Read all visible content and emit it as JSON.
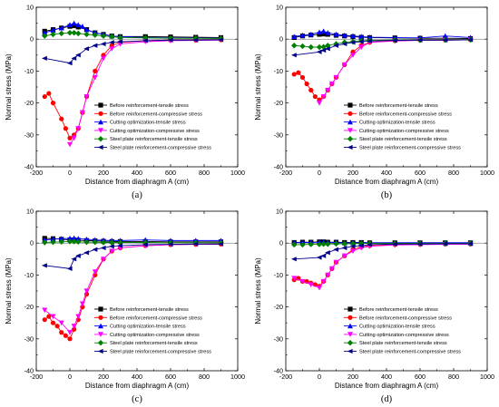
{
  "colors": {
    "tensile_before": "#000000",
    "compressive_before": "#ff0000",
    "tensile_cutting": "#0000ff",
    "compressive_cutting": "#ff00ff",
    "tensile_steel": "#008000",
    "compressive_steel": "#00008b"
  },
  "chart_data": [
    {
      "type": "line",
      "panel_label": "(a)",
      "xlabel": "Distance from diaphragm A (cm)",
      "ylabel": "Normal stress (MPa)",
      "xlim": [
        -200,
        1000
      ],
      "ylim": [
        -40,
        10
      ],
      "xticks": [
        "-200",
        "0",
        "200",
        "400",
        "600",
        "800",
        "1000"
      ],
      "yticks": [
        "10",
        "0",
        "-10",
        "-20",
        "-30",
        "-40"
      ],
      "legend_position": "center-right",
      "series": [
        {
          "name": "Before reinforcement-tensile stress",
          "marker": "square",
          "color": "#000000",
          "x": [
            -150,
            -100,
            -50,
            0,
            25,
            50,
            100,
            150,
            200,
            250,
            300,
            450,
            600,
            750,
            900
          ],
          "y": [
            2.5,
            3.0,
            3.5,
            4.0,
            4.2,
            3.8,
            3.0,
            2.0,
            1.5,
            1.0,
            0.8,
            0.8,
            0.7,
            0.6,
            0.5
          ]
        },
        {
          "name": "Before reinforcement-compressive stress",
          "marker": "circle",
          "color": "#ff0000",
          "x": [
            -150,
            -125,
            -100,
            -50,
            -25,
            0,
            25,
            50,
            75,
            100,
            150,
            200,
            250,
            300,
            450,
            600,
            750,
            900
          ],
          "y": [
            -18,
            -17,
            -20,
            -25,
            -28,
            -31,
            -30,
            -28,
            -23,
            -18,
            -10,
            -5,
            -2,
            -1,
            -0.5,
            -0.3,
            -0.3,
            -0.2
          ]
        },
        {
          "name": "Cutting optimization-tensile stress",
          "marker": "triangle-up",
          "color": "#0000ff",
          "x": [
            -150,
            -100,
            -50,
            0,
            25,
            50,
            75,
            100,
            150,
            200,
            250,
            300,
            450,
            600,
            750,
            900
          ],
          "y": [
            2.0,
            2.8,
            3.5,
            4.5,
            5.0,
            4.5,
            4.0,
            3.0,
            2.0,
            1.5,
            1.0,
            0.8,
            0.5,
            0.4,
            0.4,
            0.3
          ]
        },
        {
          "name": "Cutting optimization-compressive stress",
          "marker": "triangle-down",
          "color": "#ff00ff",
          "x": [
            0,
            25,
            50,
            75,
            100,
            150,
            200,
            250,
            300,
            450,
            600,
            750,
            900
          ],
          "y": [
            -33,
            -31,
            -28,
            -23,
            -18,
            -12,
            -6,
            -3,
            -1.5,
            -0.8,
            -0.5,
            -0.4,
            -0.3
          ]
        },
        {
          "name": "Steel plate reinforcement-tensile stress",
          "marker": "diamond",
          "color": "#008000",
          "x": [
            -150,
            -100,
            -50,
            0,
            25,
            50,
            100,
            150,
            200,
            250,
            300,
            450,
            600,
            750,
            900
          ],
          "y": [
            1.0,
            1.5,
            1.8,
            2.0,
            2.0,
            1.8,
            1.5,
            1.3,
            1.0,
            0.8,
            0.5,
            0.4,
            0.3,
            0.3,
            0.2
          ]
        },
        {
          "name": "Steel plate reinforcement-compressive stress",
          "marker": "triangle-left",
          "color": "#00008b",
          "x": [
            -150,
            0,
            25,
            50,
            100,
            150,
            200,
            250,
            300,
            450,
            600,
            750,
            900
          ],
          "y": [
            -6,
            -7.5,
            -6,
            -5,
            -3,
            -2,
            -1.5,
            -1,
            -0.8,
            -0.5,
            -0.3,
            -0.3,
            -0.2
          ]
        }
      ]
    },
    {
      "type": "line",
      "panel_label": "(b)",
      "xlabel": "Distance from diaphragm A (cm)",
      "ylabel": "Normal stress (MPa)",
      "xlim": [
        -200,
        1000
      ],
      "ylim": [
        -40,
        10
      ],
      "xticks": [
        "-200",
        "0",
        "200",
        "400",
        "600",
        "800",
        "1000"
      ],
      "yticks": [
        "10",
        "0",
        "-10",
        "-20",
        "-30",
        "-40"
      ],
      "legend_position": "center-right",
      "series": [
        {
          "name": "Before reinforcement-tensile stress",
          "marker": "square",
          "color": "#000000",
          "x": [
            -150,
            -100,
            -50,
            0,
            25,
            50,
            100,
            150,
            200,
            250,
            300,
            450,
            600,
            750,
            900
          ],
          "y": [
            0.5,
            1.0,
            1.3,
            1.5,
            1.6,
            1.5,
            1.2,
            1.0,
            0.8,
            0.6,
            0.5,
            0.4,
            0.3,
            0.3,
            0.2
          ]
        },
        {
          "name": "Before reinforcement-compressive stress",
          "marker": "circle",
          "color": "#ff0000",
          "x": [
            -150,
            -125,
            -100,
            -75,
            -50,
            -25,
            0,
            25,
            50,
            75,
            100,
            150,
            200,
            250,
            300,
            450,
            600,
            750,
            900
          ],
          "y": [
            -11,
            -10.5,
            -12,
            -14,
            -16,
            -18,
            -19,
            -18,
            -16,
            -14,
            -12,
            -8,
            -4,
            -2,
            -1,
            -0.5,
            -0.3,
            -0.3,
            -0.2
          ]
        },
        {
          "name": "Cutting optimization-tensile stress",
          "marker": "triangle-up",
          "color": "#0000ff",
          "x": [
            -150,
            -100,
            -50,
            0,
            25,
            50,
            100,
            150,
            200,
            250,
            300,
            450,
            600,
            750,
            900
          ],
          "y": [
            0.8,
            1.2,
            1.5,
            2.2,
            2.5,
            2.0,
            1.5,
            1.2,
            1.0,
            0.8,
            0.6,
            0.5,
            0.4,
            1.0,
            0.5
          ]
        },
        {
          "name": "Cutting optimization-compressive stress",
          "marker": "triangle-down",
          "color": "#ff00ff",
          "x": [
            0,
            25,
            50,
            75,
            100,
            150,
            200,
            250,
            300,
            450,
            600,
            750,
            900
          ],
          "y": [
            -20,
            -18,
            -16,
            -14,
            -12,
            -8,
            -5,
            -2.5,
            -1,
            -0.6,
            -0.4,
            -0.3,
            -0.2
          ]
        },
        {
          "name": "Steel plate reinforcement-tensile stress",
          "marker": "diamond",
          "color": "#008000",
          "x": [
            -150,
            -100,
            -50,
            0,
            25,
            50,
            100,
            150,
            200,
            250,
            300,
            450,
            600,
            750,
            900
          ],
          "y": [
            -2.0,
            -2.2,
            -2.5,
            -2.5,
            -2.4,
            -2.0,
            -1.5,
            -1.0,
            -0.8,
            -0.5,
            -0.4,
            -0.3,
            -0.3,
            -0.2,
            -0.2
          ]
        },
        {
          "name": "Steel plate reinforcement-compressive stress",
          "marker": "triangle-left",
          "color": "#00008b",
          "x": [
            -150,
            0,
            25,
            50,
            100,
            150,
            200,
            250,
            300,
            450,
            600,
            750,
            900
          ],
          "y": [
            -5,
            -4,
            -3.5,
            -3,
            -2,
            -1.5,
            -1,
            -0.8,
            -0.6,
            -0.4,
            -0.3,
            -0.3,
            -0.2
          ]
        }
      ]
    },
    {
      "type": "line",
      "panel_label": "(c)",
      "xlabel": "Distance from diaphragm A (cm)",
      "ylabel": "Normal stress (MPa)",
      "xlim": [
        -200,
        1000
      ],
      "ylim": [
        -40,
        10
      ],
      "xticks": [
        "-200",
        "0",
        "200",
        "400",
        "600",
        "800",
        "1000"
      ],
      "yticks": [
        "10",
        "0",
        "-10",
        "-20",
        "-30",
        "-40"
      ],
      "legend_position": "center-right",
      "series": [
        {
          "name": "Before reinforcement-tensile stress",
          "marker": "square",
          "color": "#000000",
          "x": [
            -150,
            -100,
            -50,
            0,
            25,
            50,
            100,
            150,
            200,
            250,
            300,
            450,
            600,
            750,
            900
          ],
          "y": [
            1.5,
            1.4,
            1.2,
            1.0,
            1.0,
            0.9,
            0.8,
            0.7,
            0.6,
            0.5,
            0.5,
            0.5,
            0.4,
            0.4,
            0.4
          ]
        },
        {
          "name": "Before reinforcement-compressive stress",
          "marker": "circle",
          "color": "#ff0000",
          "x": [
            -150,
            -125,
            -100,
            -75,
            -50,
            -25,
            0,
            25,
            50,
            75,
            100,
            150,
            200,
            250,
            300,
            450,
            600,
            750,
            900
          ],
          "y": [
            -24,
            -23,
            -25,
            -26,
            -28,
            -29,
            -30,
            -27,
            -24,
            -20,
            -16,
            -10,
            -5,
            -2.5,
            -1.5,
            -0.8,
            -0.5,
            -0.4,
            -0.3
          ]
        },
        {
          "name": "Cutting optimization-tensile stress",
          "marker": "triangle-up",
          "color": "#0000ff",
          "x": [
            -150,
            -100,
            -50,
            0,
            25,
            50,
            100,
            150,
            200,
            250,
            300,
            450,
            600,
            750,
            900
          ],
          "y": [
            1.0,
            1.2,
            1.4,
            1.5,
            1.6,
            1.4,
            1.2,
            1.0,
            0.9,
            0.8,
            0.8,
            1.0,
            0.8,
            0.8,
            0.8
          ]
        },
        {
          "name": "Cutting optimization-compressive stress",
          "marker": "triangle-down",
          "color": "#ff00ff",
          "x": [
            -150,
            -100,
            -50,
            0,
            25,
            50,
            75,
            100,
            150,
            200,
            250,
            300,
            450,
            600,
            750,
            900
          ],
          "y": [
            -21,
            -23,
            -25,
            -28,
            -26,
            -23,
            -19,
            -15,
            -9,
            -5,
            -2.5,
            -1.5,
            -0.8,
            -0.5,
            -0.4,
            -0.3
          ]
        },
        {
          "name": "Steel plate reinforcement-tensile stress",
          "marker": "diamond",
          "color": "#008000",
          "x": [
            -150,
            -100,
            -50,
            0,
            25,
            50,
            100,
            150,
            200,
            250,
            300,
            450,
            600,
            750,
            900
          ],
          "y": [
            0.2,
            0.3,
            0.4,
            0.5,
            0.5,
            0.4,
            0.3,
            0.3,
            0.2,
            0.2,
            0.2,
            0.2,
            0.1,
            0.1,
            0.1
          ]
        },
        {
          "name": "Steel plate reinforcement-compressive stress",
          "marker": "triangle-left",
          "color": "#00008b",
          "x": [
            -150,
            0,
            25,
            50,
            100,
            150,
            200,
            250,
            300,
            450,
            600,
            750,
            900
          ],
          "y": [
            -7,
            -8,
            -5,
            -4,
            -3,
            -2,
            -1.5,
            -1,
            -0.8,
            -0.5,
            -0.4,
            -0.3,
            -0.3
          ]
        }
      ]
    },
    {
      "type": "line",
      "panel_label": "(d)",
      "xlabel": "Distance from diaphragm A (cm)",
      "ylabel": "Normal stress (MPa)",
      "xlim": [
        -200,
        1000
      ],
      "ylim": [
        -40,
        10
      ],
      "xticks": [
        "-200",
        "0",
        "200",
        "400",
        "600",
        "800",
        "1000"
      ],
      "yticks": [
        "10",
        "0",
        "-10",
        "-20",
        "-30",
        "-40"
      ],
      "legend_position": "center-right",
      "series": [
        {
          "name": "Before reinforcement-tensile stress",
          "marker": "square",
          "color": "#000000",
          "x": [
            -150,
            -100,
            -50,
            0,
            25,
            50,
            100,
            150,
            200,
            250,
            300,
            450,
            600,
            750,
            900
          ],
          "y": [
            0.2,
            0.3,
            0.3,
            0.4,
            0.4,
            0.3,
            0.3,
            0.2,
            0.2,
            0.2,
            0.1,
            0.1,
            0.1,
            0.1,
            0.1
          ]
        },
        {
          "name": "Before reinforcement-compressive stress",
          "marker": "circle",
          "color": "#ff0000",
          "x": [
            -150,
            -125,
            -100,
            -75,
            -50,
            -25,
            0,
            25,
            50,
            75,
            100,
            150,
            200,
            250,
            300,
            450,
            600,
            750,
            900
          ],
          "y": [
            -11.5,
            -11,
            -12,
            -12,
            -12.5,
            -13,
            -13.5,
            -12,
            -10,
            -8,
            -6,
            -4,
            -2,
            -1.2,
            -0.8,
            -0.5,
            -0.4,
            -0.3,
            -0.3
          ]
        },
        {
          "name": "Cutting optimization-tensile stress",
          "marker": "triangle-up",
          "color": "#0000ff",
          "x": [
            -150,
            -100,
            -50,
            0,
            25,
            50,
            100,
            150,
            200,
            250,
            300,
            450,
            600,
            750,
            900
          ],
          "y": [
            0.1,
            0.2,
            0.2,
            0.3,
            0.3,
            0.2,
            0.2,
            0.1,
            0.1,
            0.1,
            0.1,
            0.1,
            0.1,
            0.1,
            0.1
          ]
        },
        {
          "name": "Cutting optimization-compressive stress",
          "marker": "triangle-down",
          "color": "#ff00ff",
          "x": [
            -150,
            -100,
            -50,
            0,
            25,
            50,
            75,
            100,
            150,
            200,
            250,
            300,
            450,
            600,
            750,
            900
          ],
          "y": [
            -11,
            -12,
            -13,
            -14,
            -12,
            -10,
            -8,
            -6,
            -4,
            -2.5,
            -1.5,
            -1,
            -0.6,
            -0.5,
            -0.4,
            -0.3
          ]
        },
        {
          "name": "Steel plate reinforcement-tensile stress",
          "marker": "diamond",
          "color": "#008000",
          "x": [
            -150,
            -100,
            -50,
            0,
            25,
            50,
            100,
            150,
            200,
            250,
            300,
            450,
            600,
            750,
            900
          ],
          "y": [
            -0.5,
            -0.5,
            -0.4,
            -0.4,
            -0.3,
            -0.3,
            -0.2,
            -0.2,
            -0.2,
            -0.1,
            -0.1,
            -0.1,
            -0.1,
            -0.1,
            -0.1
          ]
        },
        {
          "name": "Steel plate reinforcement-compressive stress",
          "marker": "triangle-left",
          "color": "#00008b",
          "x": [
            -150,
            0,
            25,
            50,
            100,
            150,
            200,
            250,
            300,
            450,
            600,
            750,
            900
          ],
          "y": [
            -5,
            -4.5,
            -4,
            -3,
            -2,
            -1.5,
            -1,
            -0.8,
            -0.5,
            -0.3,
            -0.3,
            -0.2,
            -0.2
          ]
        }
      ]
    }
  ]
}
